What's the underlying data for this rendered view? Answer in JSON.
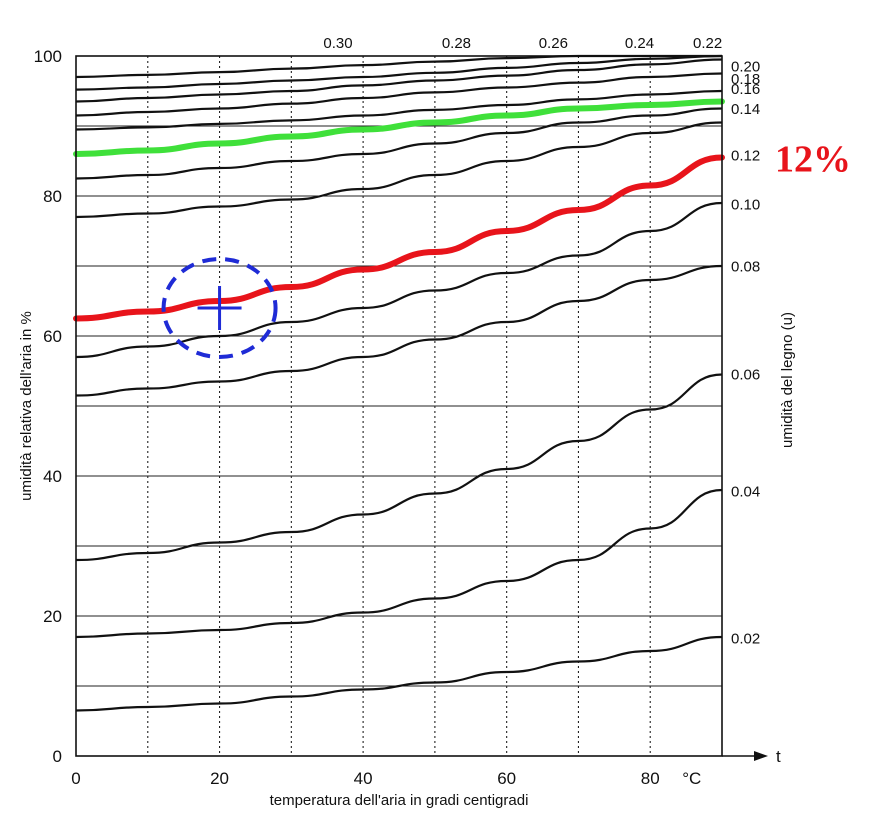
{
  "chart_data": {
    "type": "line",
    "title": "",
    "xlabel": "temperatura dell'aria in gradi centigradi",
    "ylabel": "umidità relativa dell'aria in %",
    "right_axis_label": "umidità del legno (u)",
    "x_unit": "°C",
    "x_axis_end_label": "t",
    "xlim": [
      0,
      90
    ],
    "ylim": [
      0,
      100
    ],
    "x_ticks": [
      "0",
      "20",
      "40",
      "60",
      "80"
    ],
    "y_ticks": [
      "0",
      "20",
      "40",
      "60",
      "80",
      "100"
    ],
    "grid": true,
    "x": [
      0,
      10,
      20,
      30,
      40,
      50,
      60,
      70,
      80,
      90
    ],
    "series": [
      {
        "name": "0.02",
        "values": [
          6.5,
          7,
          7.5,
          8.5,
          9.5,
          10.5,
          12,
          13.5,
          15,
          17
        ],
        "highlight": ""
      },
      {
        "name": "0.04",
        "values": [
          17,
          17.5,
          18,
          19,
          20.5,
          22.5,
          25,
          28,
          32.5,
          38
        ],
        "highlight": ""
      },
      {
        "name": "0.06",
        "values": [
          28,
          29,
          30.5,
          32,
          34.5,
          37.5,
          41,
          45,
          49.5,
          54.5
        ],
        "highlight": ""
      },
      {
        "name": "0.08",
        "values": [
          51.5,
          52.5,
          53.5,
          55,
          57,
          59.5,
          62,
          65,
          68,
          70
        ],
        "highlight": ""
      },
      {
        "name": "0.10",
        "values": [
          57,
          58.5,
          60,
          62,
          64,
          66.5,
          69,
          71.5,
          75,
          79
        ],
        "highlight": ""
      },
      {
        "name": "0.12",
        "values": [
          62.5,
          63.5,
          65,
          67,
          69.5,
          72,
          75,
          78,
          81.5,
          85.5
        ],
        "highlight": "#e8141b"
      },
      {
        "name": "0.14",
        "values": [
          77,
          77.5,
          78.5,
          79.5,
          81,
          83,
          85,
          87,
          89,
          90.5
        ],
        "highlight": ""
      },
      {
        "name": "",
        "values": [
          82.5,
          83,
          84,
          85,
          86,
          87.5,
          89,
          90.5,
          91.5,
          92.5
        ],
        "highlight": ""
      },
      {
        "name": "0.16",
        "values": [
          86,
          86.5,
          87.5,
          88.5,
          89.5,
          90.5,
          91.5,
          92.5,
          93,
          93.5
        ],
        "highlight": "#3fe03a"
      },
      {
        "name": "0.18",
        "values": [
          89.5,
          89.8,
          90.3,
          90.8,
          91.5,
          92.3,
          93,
          93.8,
          94.5,
          95
        ],
        "highlight": ""
      },
      {
        "name": "0.20",
        "values": [
          91.5,
          92,
          92.5,
          93.2,
          94,
          94.8,
          95.5,
          96.2,
          97,
          97.5
        ],
        "highlight": ""
      },
      {
        "name": "",
        "values": [
          93.5,
          94,
          94.5,
          95,
          95.8,
          96.5,
          97.2,
          98,
          98.8,
          99.5
        ],
        "highlight": ""
      },
      {
        "name": "",
        "values": [
          95.2,
          95.5,
          96,
          96.5,
          97,
          97.6,
          98.3,
          99,
          99.6,
          100
        ],
        "highlight": ""
      },
      {
        "name": "",
        "values": [
          97,
          97.3,
          97.7,
          98.2,
          98.7,
          99.2,
          99.7,
          100,
          100,
          100
        ],
        "highlight": ""
      }
    ],
    "curve_labels_right": [
      {
        "text": "0.20",
        "y": 98.5
      },
      {
        "text": "0.18",
        "y": 96.7
      },
      {
        "text": "0.16",
        "y": 95.3
      },
      {
        "text": "0.14",
        "y": 92.4
      },
      {
        "text": "0.12",
        "y": 85.8
      },
      {
        "text": "0.10",
        "y": 78.8
      },
      {
        "text": "0.08",
        "y": 69.9
      },
      {
        "text": "0.06",
        "y": 54.5
      },
      {
        "text": "0.04",
        "y": 37.8
      },
      {
        "text": "0.02",
        "y": 16.8
      }
    ],
    "curve_labels_top": [
      {
        "text": "0.30",
        "x": 36.5
      },
      {
        "text": "0.28",
        "x": 53
      },
      {
        "text": "0.26",
        "x": 66.5
      },
      {
        "text": "0.24",
        "x": 78.5
      },
      {
        "text": "0.22",
        "x": 88
      }
    ],
    "annotations": [
      {
        "kind": "text",
        "text": "12%",
        "color": "#e8141b",
        "y": 85.5
      },
      {
        "kind": "marker",
        "shape": "plus-in-dashed-circle",
        "color": "#1f2bd6",
        "x": 20,
        "y": 64
      }
    ],
    "colors": {
      "red": "#e8141b",
      "green": "#3fe03a",
      "blue": "#1f2bd6"
    }
  }
}
